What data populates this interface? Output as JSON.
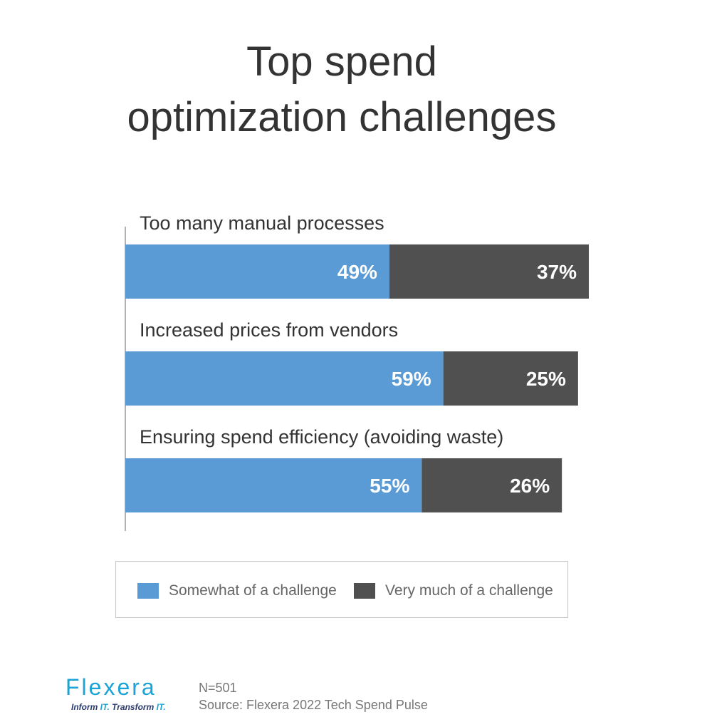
{
  "title_lines": [
    "Top spend",
    "optimization challenges"
  ],
  "chart_data": {
    "type": "bar",
    "orientation": "horizontal",
    "stacked": true,
    "title": "Top spend optimization challenges",
    "categories": [
      "Too many manual processes",
      "Increased prices from vendors",
      "Ensuring spend efficiency (avoiding waste)"
    ],
    "series": [
      {
        "name": "Somewhat of a challenge",
        "color": "#5b9bd5",
        "values": [
          49,
          59,
          55
        ],
        "labels": [
          "49%",
          "59%",
          "55%"
        ]
      },
      {
        "name": "Very much of a challenge",
        "color": "#505050",
        "values": [
          37,
          25,
          26
        ],
        "labels": [
          "37%",
          "25%",
          "26%"
        ]
      }
    ],
    "unit": "%",
    "legend_position": "bottom",
    "grid": false
  },
  "legend": {
    "somewhat_label": "Somewhat of a challenge",
    "very_label": "Very much of a challenge",
    "somewhat_color": "#5b9bd5",
    "very_color": "#505050"
  },
  "footer": {
    "brand": "Flexera",
    "tagline_1": "Inform ",
    "tagline_2": "IT.",
    "tagline_3": " Transform ",
    "tagline_4": "IT.",
    "sample": "N=501",
    "source": "Source: Flexera 2022 Tech Spend Pulse"
  }
}
